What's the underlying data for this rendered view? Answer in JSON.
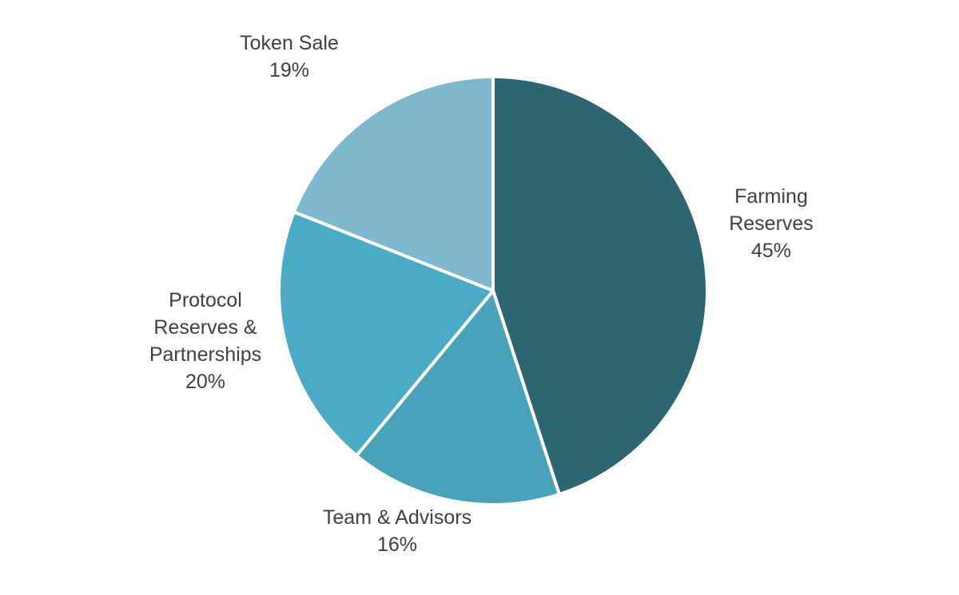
{
  "chart_data": {
    "type": "pie",
    "title": "",
    "slices": [
      {
        "label_lines": [
          "Farming",
          "Reserves"
        ],
        "value_label": "45%",
        "value": 45,
        "color": "#2c6673"
      },
      {
        "label_lines": [
          "Team & Advisors"
        ],
        "value_label": "16%",
        "value": 16,
        "color": "#48a2ba"
      },
      {
        "label_lines": [
          "Protocol",
          "Reserves &",
          "Partnerships"
        ],
        "value_label": "20%",
        "value": 20,
        "color": "#4aabc6"
      },
      {
        "label_lines": [
          "Token Sale"
        ],
        "value_label": "19%",
        "value": 19,
        "color": "#7eb8ce"
      }
    ],
    "start_angle_deg": 0,
    "direction": "clockwise",
    "legend": "none",
    "data_labels": "outside"
  }
}
